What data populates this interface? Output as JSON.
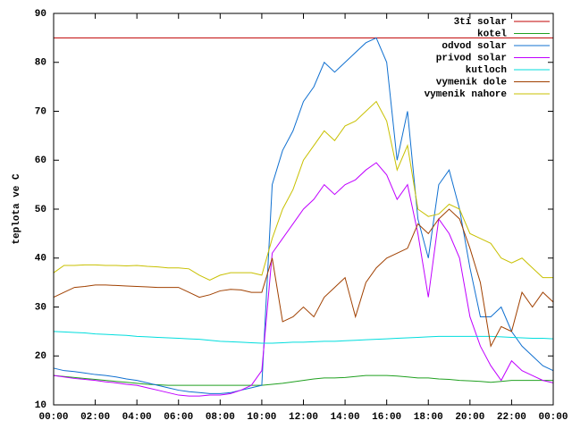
{
  "chart_data": {
    "type": "line",
    "ylabel": "teplota ve C",
    "x": [
      0,
      0.5,
      1,
      1.5,
      2,
      2.5,
      3,
      3.5,
      4,
      4.5,
      5,
      5.5,
      6,
      6.5,
      7,
      7.5,
      8,
      8.5,
      9,
      9.5,
      10,
      10.5,
      11,
      11.5,
      12,
      12.5,
      13,
      13.5,
      14,
      14.5,
      15,
      15.5,
      16,
      16.5,
      17,
      17.5,
      18,
      18.5,
      19,
      19.5,
      20,
      20.5,
      21,
      21.5,
      22,
      22.5,
      23,
      23.5,
      24
    ],
    "xlim": [
      0,
      24
    ],
    "xticks": [
      {
        "value": 0,
        "label": "00:00"
      },
      {
        "value": 2,
        "label": "02:00"
      },
      {
        "value": 4,
        "label": "04:00"
      },
      {
        "value": 6,
        "label": "06:00"
      },
      {
        "value": 8,
        "label": "08:00"
      },
      {
        "value": 10,
        "label": "10:00"
      },
      {
        "value": 12,
        "label": "12:00"
      },
      {
        "value": 14,
        "label": "14:00"
      },
      {
        "value": 16,
        "label": "16:00"
      },
      {
        "value": 18,
        "label": "18:00"
      },
      {
        "value": 20,
        "label": "20:00"
      },
      {
        "value": 22,
        "label": "22:00"
      },
      {
        "value": 24,
        "label": "00:00"
      }
    ],
    "ylim": [
      10,
      90
    ],
    "yticks": [
      10,
      20,
      30,
      40,
      50,
      60,
      70,
      80,
      90
    ],
    "grid": false,
    "legend": "top-right",
    "series": [
      {
        "name": "3ti solar",
        "color": "#c00000",
        "values": [
          85,
          85,
          85,
          85,
          85,
          85,
          85,
          85,
          85,
          85,
          85,
          85,
          85,
          85,
          85,
          85,
          85,
          85,
          85,
          85,
          85,
          85,
          85,
          85,
          85,
          85,
          85,
          85,
          85,
          85,
          85,
          85,
          85,
          85,
          85,
          85,
          85,
          85,
          85,
          85,
          85,
          85,
          85,
          85,
          85,
          85,
          85,
          85,
          85
        ]
      },
      {
        "name": "kotel",
        "color": "#20a020",
        "values": [
          16,
          15.8,
          15.6,
          15.4,
          15.2,
          15,
          14.8,
          14.6,
          14.4,
          14.2,
          14.1,
          14,
          14,
          14,
          14,
          14,
          14,
          14,
          14,
          14,
          14,
          14.2,
          14.4,
          14.7,
          15,
          15.3,
          15.5,
          15.5,
          15.6,
          15.8,
          16,
          16,
          16,
          15.9,
          15.7,
          15.5,
          15.5,
          15.3,
          15.2,
          15,
          14.9,
          14.8,
          14.6,
          14.8,
          15,
          15,
          15,
          15,
          15
        ]
      },
      {
        "name": "odvod solar",
        "color": "#1070d0",
        "values": [
          17.5,
          17,
          16.8,
          16.5,
          16.2,
          16,
          15.7,
          15.3,
          15,
          14.5,
          14,
          13.5,
          13,
          12.7,
          12.5,
          12.3,
          12.3,
          12.5,
          13,
          13.5,
          14,
          55,
          62,
          66,
          72,
          75,
          80,
          78,
          80,
          82,
          84,
          85,
          80,
          60,
          70,
          48,
          40,
          55,
          58,
          50,
          38,
          28,
          28,
          30,
          25,
          22,
          20,
          18,
          17
        ]
      },
      {
        "name": "privod solar",
        "color": "#c000ff",
        "values": [
          16,
          15.7,
          15.4,
          15.2,
          15,
          14.7,
          14.5,
          14.2,
          14,
          13.5,
          13,
          12.5,
          12,
          11.8,
          11.8,
          12,
          12,
          12.3,
          13,
          14,
          17,
          41,
          44,
          47,
          50,
          52,
          55,
          53,
          55,
          56,
          58,
          59.5,
          57,
          52,
          55,
          45,
          32,
          48,
          45,
          40,
          28,
          22,
          18,
          15,
          19,
          17,
          16,
          15,
          14.5
        ]
      },
      {
        "name": "kutloch",
        "color": "#00dddd",
        "values": [
          25,
          24.9,
          24.8,
          24.7,
          24.5,
          24.4,
          24.3,
          24.2,
          24,
          23.9,
          23.8,
          23.7,
          23.6,
          23.5,
          23.4,
          23.2,
          23,
          22.9,
          22.8,
          22.7,
          22.6,
          22.6,
          22.7,
          22.8,
          22.8,
          22.9,
          23,
          23,
          23.1,
          23.2,
          23.3,
          23.4,
          23.5,
          23.6,
          23.7,
          23.8,
          23.9,
          24,
          24,
          24,
          24,
          24,
          24,
          23.9,
          23.8,
          23.7,
          23.6,
          23.6,
          23.5
        ]
      },
      {
        "name": "vymenik dole",
        "color": "#a04000",
        "values": [
          32,
          33,
          34,
          34.2,
          34.5,
          34.5,
          34.4,
          34.3,
          34.2,
          34.1,
          34,
          34,
          34,
          33,
          32,
          32.5,
          33.3,
          33.6,
          33.5,
          33,
          33,
          40,
          27,
          28,
          30,
          28,
          32,
          34,
          36,
          28,
          35,
          38,
          40,
          41,
          42,
          47,
          45,
          48,
          50,
          48,
          42,
          35,
          22,
          26,
          25,
          33,
          30,
          33,
          31
        ]
      },
      {
        "name": "vymenik nahore",
        "color": "#c8c000",
        "values": [
          37,
          38.5,
          38.5,
          38.6,
          38.6,
          38.5,
          38.5,
          38.4,
          38.5,
          38.3,
          38.2,
          38,
          38,
          37.8,
          36.5,
          35.5,
          36.5,
          37,
          37,
          37,
          36.5,
          44,
          50,
          54,
          60,
          63,
          66,
          64,
          67,
          68,
          70,
          72,
          68,
          58,
          63,
          50,
          48.5,
          49,
          51,
          50,
          45,
          44,
          43,
          40,
          39,
          40,
          38,
          36,
          36
        ]
      }
    ]
  }
}
